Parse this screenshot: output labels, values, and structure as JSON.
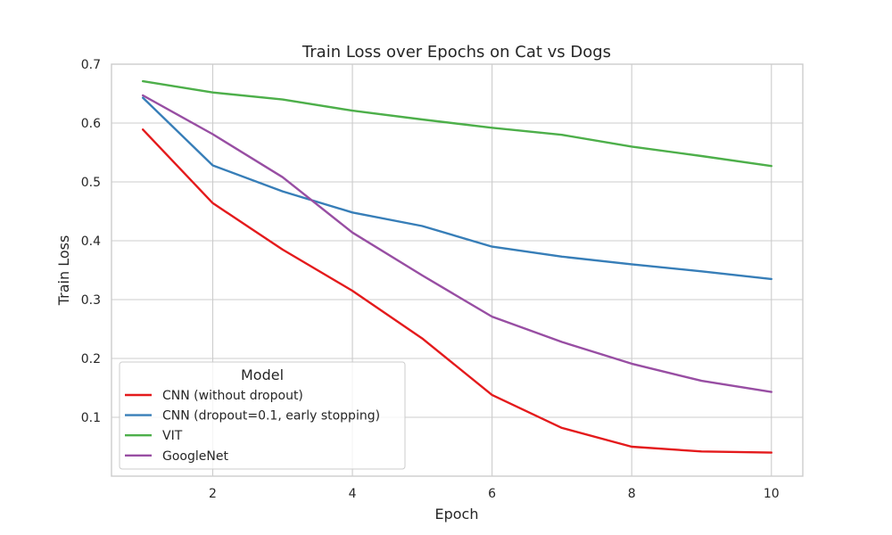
{
  "chart_data": {
    "type": "line",
    "title": "Train Loss over Epochs on Cat vs Dogs",
    "xlabel": "Epoch",
    "ylabel": "Train Loss",
    "xlim": [
      0.55,
      10.45
    ],
    "ylim": [
      0.0,
      0.7
    ],
    "x_ticks": [
      2,
      4,
      6,
      8,
      10
    ],
    "y_ticks": [
      0.1,
      0.2,
      0.3,
      0.4,
      0.5,
      0.6,
      0.7
    ],
    "grid": true,
    "x": [
      1,
      2,
      3,
      4,
      5,
      6,
      7,
      8,
      9,
      10
    ],
    "legend": {
      "title": "Model",
      "placement": "lower-left"
    },
    "series": [
      {
        "name": "CNN (without dropout)",
        "color": "#e41a1c",
        "values": [
          0.589,
          0.464,
          0.385,
          0.315,
          0.234,
          0.138,
          0.082,
          0.05,
          0.042,
          0.04
        ]
      },
      {
        "name": "CNN (dropout=0.1, early stopping)",
        "color": "#377eb8",
        "values": [
          0.643,
          0.528,
          0.484,
          0.448,
          0.425,
          0.39,
          0.373,
          0.36,
          0.348,
          0.335
        ]
      },
      {
        "name": "VIT",
        "color": "#4daf4a",
        "values": [
          0.671,
          0.652,
          0.64,
          0.621,
          0.606,
          0.592,
          0.58,
          0.56,
          0.544,
          0.527
        ]
      },
      {
        "name": "GoogleNet",
        "color": "#984ea3",
        "values": [
          0.647,
          0.581,
          0.508,
          0.414,
          0.341,
          0.271,
          0.228,
          0.191,
          0.162,
          0.143
        ]
      }
    ]
  }
}
